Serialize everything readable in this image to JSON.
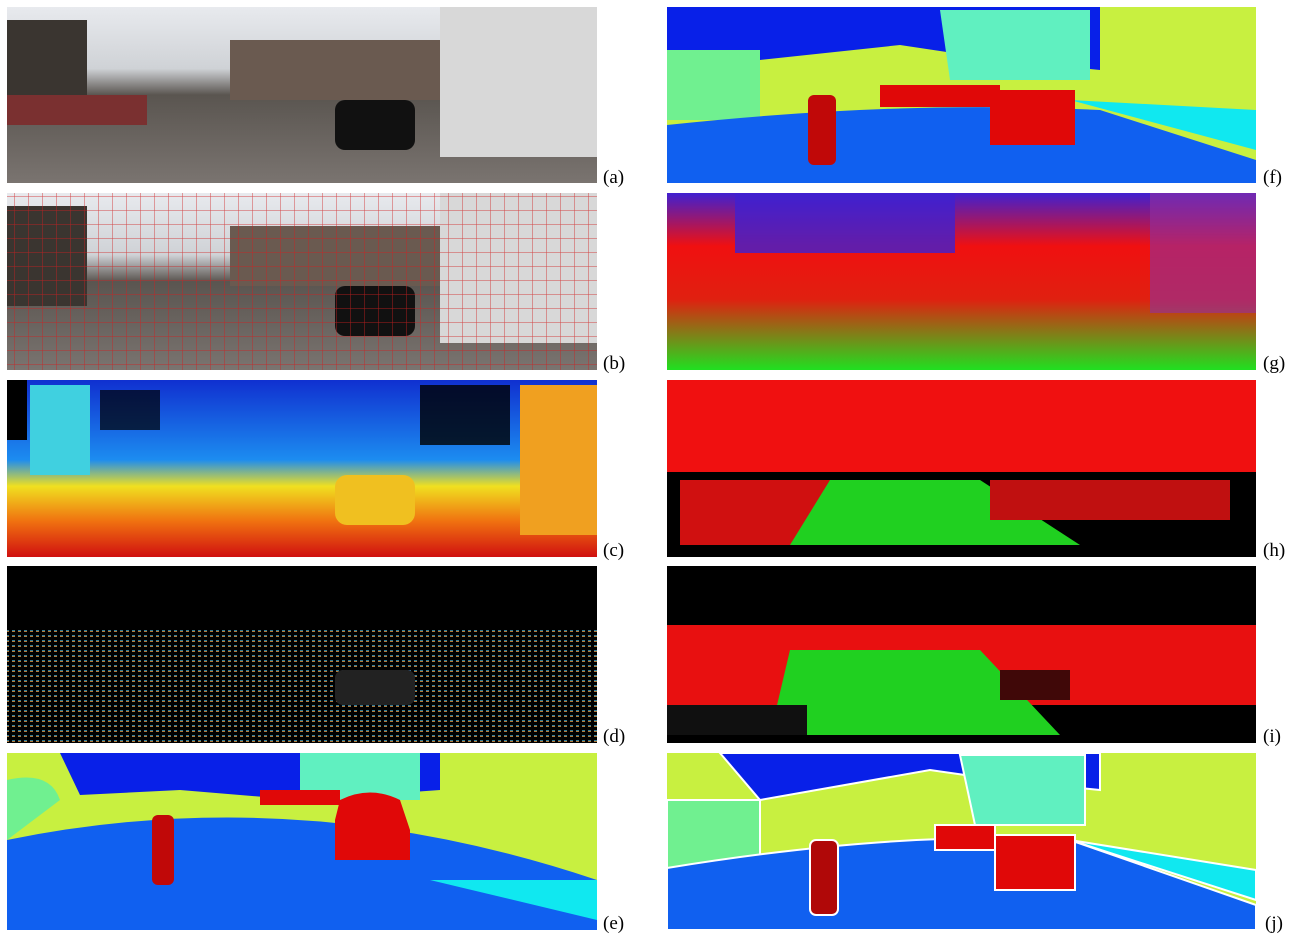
{
  "panels": [
    {
      "label": "(a)"
    },
    {
      "label": "(b)"
    },
    {
      "label": "(c)"
    },
    {
      "label": "(d)"
    },
    {
      "label": "(e)"
    },
    {
      "label": "(f)"
    },
    {
      "label": "(g)"
    },
    {
      "label": "(h)"
    },
    {
      "label": "(i)"
    },
    {
      "label": "(j)"
    }
  ]
}
